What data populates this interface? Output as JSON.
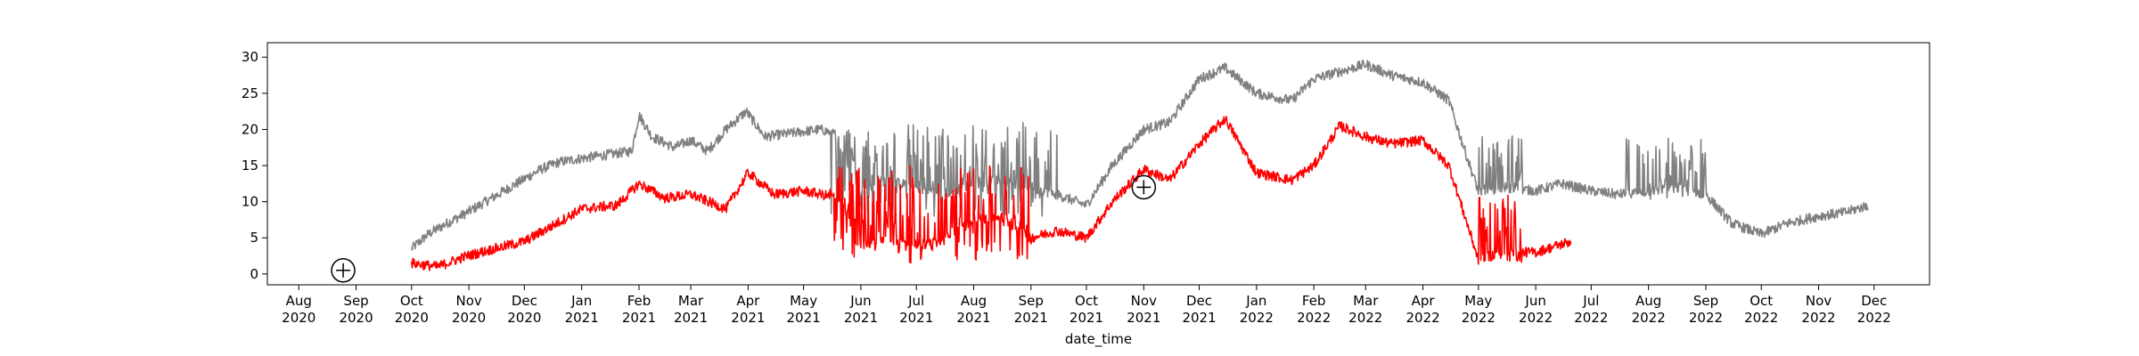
{
  "chart_data": {
    "type": "line",
    "xlabel": "date_time",
    "ylabel": "",
    "title": "",
    "xlim": [
      "2020-07-15",
      "2022-12-31"
    ],
    "ylim": [
      -1.5,
      32
    ],
    "grid": false,
    "legend": "none",
    "yticks": [
      0,
      5,
      10,
      15,
      20,
      25,
      30
    ],
    "xticks": [
      {
        "date": "2020-08-01",
        "month": "Aug",
        "year": "2020"
      },
      {
        "date": "2020-09-01",
        "month": "Sep",
        "year": "2020"
      },
      {
        "date": "2020-10-01",
        "month": "Oct",
        "year": "2020"
      },
      {
        "date": "2020-11-01",
        "month": "Nov",
        "year": "2020"
      },
      {
        "date": "2020-12-01",
        "month": "Dec",
        "year": "2020"
      },
      {
        "date": "2021-01-01",
        "month": "Jan",
        "year": "2021"
      },
      {
        "date": "2021-02-01",
        "month": "Feb",
        "year": "2021"
      },
      {
        "date": "2021-03-01",
        "month": "Mar",
        "year": "2021"
      },
      {
        "date": "2021-04-01",
        "month": "Apr",
        "year": "2021"
      },
      {
        "date": "2021-05-01",
        "month": "May",
        "year": "2021"
      },
      {
        "date": "2021-06-01",
        "month": "Jun",
        "year": "2021"
      },
      {
        "date": "2021-07-01",
        "month": "Jul",
        "year": "2021"
      },
      {
        "date": "2021-08-01",
        "month": "Aug",
        "year": "2021"
      },
      {
        "date": "2021-09-01",
        "month": "Sep",
        "year": "2021"
      },
      {
        "date": "2021-10-01",
        "month": "Oct",
        "year": "2021"
      },
      {
        "date": "2021-11-01",
        "month": "Nov",
        "year": "2021"
      },
      {
        "date": "2021-12-01",
        "month": "Dec",
        "year": "2021"
      },
      {
        "date": "2022-01-01",
        "month": "Jan",
        "year": "2022"
      },
      {
        "date": "2022-02-01",
        "month": "Feb",
        "year": "2022"
      },
      {
        "date": "2022-03-01",
        "month": "Mar",
        "year": "2022"
      },
      {
        "date": "2022-04-01",
        "month": "Apr",
        "year": "2022"
      },
      {
        "date": "2022-05-01",
        "month": "May",
        "year": "2022"
      },
      {
        "date": "2022-06-01",
        "month": "Jun",
        "year": "2022"
      },
      {
        "date": "2022-07-01",
        "month": "Jul",
        "year": "2022"
      },
      {
        "date": "2022-08-01",
        "month": "Aug",
        "year": "2022"
      },
      {
        "date": "2022-09-01",
        "month": "Sep",
        "year": "2022"
      },
      {
        "date": "2022-10-01",
        "month": "Oct",
        "year": "2022"
      },
      {
        "date": "2022-11-01",
        "month": "Nov",
        "year": "2022"
      },
      {
        "date": "2022-12-01",
        "month": "Dec",
        "year": "2022"
      }
    ],
    "series": [
      {
        "color": "#808080",
        "points": [
          [
            "2020-10-01",
            3.5
          ],
          [
            "2020-10-10",
            5.5
          ],
          [
            "2020-10-20",
            7
          ],
          [
            "2020-10-31",
            8.5
          ],
          [
            "2020-11-10",
            10
          ],
          [
            "2020-11-20",
            11.5
          ],
          [
            "2020-11-30",
            13
          ],
          [
            "2020-12-10",
            14.5
          ],
          [
            "2020-12-20",
            15.5
          ],
          [
            "2021-01-01",
            16
          ],
          [
            "2021-01-15",
            16.5
          ],
          [
            "2021-01-28",
            17
          ],
          [
            "2021-02-01",
            22
          ],
          [
            "2021-02-08",
            19
          ],
          [
            "2021-02-20",
            17.5
          ],
          [
            "2021-03-01",
            18.5
          ],
          [
            "2021-03-10",
            17
          ],
          [
            "2021-03-20",
            20
          ],
          [
            "2021-03-31",
            22.5
          ],
          [
            "2021-04-10",
            19
          ],
          [
            "2021-04-25",
            19.5
          ],
          [
            "2021-05-10",
            20
          ],
          [
            "2021-05-25",
            19
          ],
          [
            "2021-06-01",
            12
          ],
          [
            "2021-06-15",
            13
          ],
          [
            "2021-07-01",
            12
          ],
          [
            "2021-07-15",
            11
          ],
          [
            "2021-08-01",
            12.5
          ],
          [
            "2021-08-15",
            13
          ],
          [
            "2021-09-01",
            12
          ],
          [
            "2021-09-15",
            11
          ],
          [
            "2021-10-01",
            9.5
          ],
          [
            "2021-10-15",
            15
          ],
          [
            "2021-11-01",
            20
          ],
          [
            "2021-11-15",
            21
          ],
          [
            "2021-12-01",
            27
          ],
          [
            "2021-12-15",
            28.5
          ],
          [
            "2022-01-01",
            25
          ],
          [
            "2022-01-20",
            24
          ],
          [
            "2022-02-01",
            27
          ],
          [
            "2022-02-15",
            28
          ],
          [
            "2022-03-01",
            29
          ],
          [
            "2022-03-15",
            27.5
          ],
          [
            "2022-04-01",
            26.5
          ],
          [
            "2022-04-15",
            24
          ],
          [
            "2022-04-25",
            16
          ],
          [
            "2022-05-01",
            11.5
          ],
          [
            "2022-05-15",
            12
          ],
          [
            "2022-06-01",
            11.5
          ],
          [
            "2022-06-15",
            12.5
          ],
          [
            "2022-07-01",
            11.5
          ],
          [
            "2022-07-15",
            11
          ],
          [
            "2022-08-01",
            11.5
          ],
          [
            "2022-08-15",
            12
          ],
          [
            "2022-09-01",
            11
          ],
          [
            "2022-09-15",
            7
          ],
          [
            "2022-10-01",
            5.5
          ],
          [
            "2022-10-15",
            7
          ],
          [
            "2022-11-01",
            8
          ],
          [
            "2022-11-15",
            8.5
          ],
          [
            "2022-11-28",
            9.5
          ]
        ],
        "noise_bands": [
          {
            "start": "2021-05-15",
            "end": "2021-09-15",
            "low": 8,
            "high": 21
          },
          {
            "start": "2022-05-01",
            "end": "2022-05-25",
            "low": 11,
            "high": 19.5
          },
          {
            "start": "2022-07-20",
            "end": "2022-09-01",
            "low": 9.5,
            "high": 19
          }
        ]
      },
      {
        "color": "#ff0000",
        "points": [
          [
            "2020-10-01",
            1.5
          ],
          [
            "2020-10-15",
            1
          ],
          [
            "2020-10-31",
            2.5
          ],
          [
            "2020-11-15",
            3.5
          ],
          [
            "2020-12-01",
            4.5
          ],
          [
            "2020-12-15",
            6.5
          ],
          [
            "2021-01-01",
            9
          ],
          [
            "2021-01-20",
            9.5
          ],
          [
            "2021-02-01",
            12.5
          ],
          [
            "2021-02-15",
            10.5
          ],
          [
            "2021-03-01",
            11
          ],
          [
            "2021-03-20",
            9
          ],
          [
            "2021-04-01",
            14
          ],
          [
            "2021-04-15",
            11
          ],
          [
            "2021-05-01",
            11.5
          ],
          [
            "2021-05-20",
            10.5
          ],
          [
            "2021-06-01",
            4
          ],
          [
            "2021-06-15",
            5
          ],
          [
            "2021-07-01",
            4
          ],
          [
            "2021-07-15",
            4.5
          ],
          [
            "2021-08-01",
            7.5
          ],
          [
            "2021-08-15",
            8
          ],
          [
            "2021-09-01",
            5
          ],
          [
            "2021-09-15",
            6
          ],
          [
            "2021-10-01",
            5
          ],
          [
            "2021-10-15",
            10
          ],
          [
            "2021-11-01",
            14.5
          ],
          [
            "2021-11-15",
            13
          ],
          [
            "2021-12-01",
            18
          ],
          [
            "2021-12-15",
            21.5
          ],
          [
            "2022-01-01",
            14
          ],
          [
            "2022-01-20",
            13
          ],
          [
            "2022-02-01",
            15
          ],
          [
            "2022-02-15",
            20.5
          ],
          [
            "2022-03-01",
            19
          ],
          [
            "2022-03-15",
            18
          ],
          [
            "2022-04-01",
            18.5
          ],
          [
            "2022-04-15",
            15
          ],
          [
            "2022-05-01",
            2
          ],
          [
            "2022-05-15",
            3
          ],
          [
            "2022-06-01",
            3
          ],
          [
            "2022-06-20",
            4.5
          ]
        ],
        "noise_bands": [
          {
            "start": "2021-05-15",
            "end": "2021-09-01",
            "low": 1.5,
            "high": 15
          },
          {
            "start": "2022-05-01",
            "end": "2022-05-25",
            "low": 1.5,
            "high": 11
          }
        ]
      }
    ],
    "markers": [
      {
        "x": "2020-08-25",
        "y": 0.5
      },
      {
        "x": "2021-11-01",
        "y": 12
      }
    ]
  }
}
